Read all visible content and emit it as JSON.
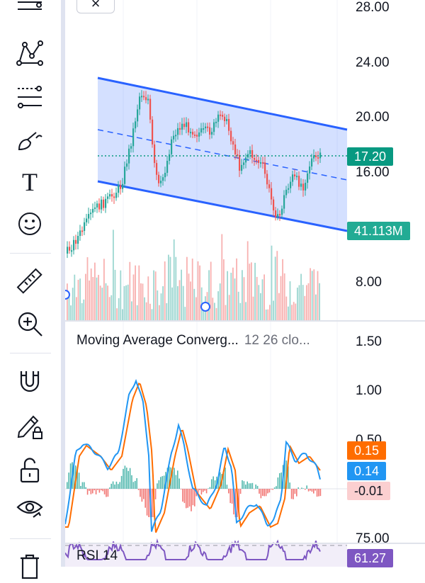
{
  "toolbar": {
    "tools": [
      {
        "name": "lines-tool-icon"
      },
      {
        "name": "pattern-tool-icon"
      },
      {
        "name": "fib-tool-icon"
      },
      {
        "name": "brush-tool-icon"
      },
      {
        "name": "text-tool-icon"
      },
      {
        "name": "emoji-tool-icon"
      },
      {
        "name": "ruler-tool-icon"
      },
      {
        "name": "zoom-in-tool-icon"
      },
      {
        "name": "magnet-tool-icon"
      },
      {
        "name": "lock-drawing-tool-icon"
      },
      {
        "name": "unlock-tool-icon"
      },
      {
        "name": "eye-tool-icon"
      },
      {
        "name": "trash-tool-icon"
      }
    ],
    "text_tool_glyph": "T"
  },
  "close_button": "×",
  "price_axis": [
    "28.00",
    "24.00",
    "20.00",
    "16.00",
    "8.00"
  ],
  "price_tag": "17.20",
  "volume_tag": "41.113M",
  "macd": {
    "title": "Moving Average Converg...",
    "params": "12 26 clo...",
    "axis": [
      "1.50",
      "1.00",
      "0.50"
    ],
    "signal_value": "0.15",
    "macd_value": "0.14",
    "hist_value": "-0.01"
  },
  "rsi": {
    "title": "RSI 14",
    "axis_top": "75.00",
    "value": "61.27"
  },
  "colors": {
    "up": "#26a69a",
    "down": "#ef5350",
    "channel": "#2962ff",
    "macd_line": "#2196f3",
    "signal_line": "#ff6d00",
    "rsi": "#7e57c2"
  }
}
